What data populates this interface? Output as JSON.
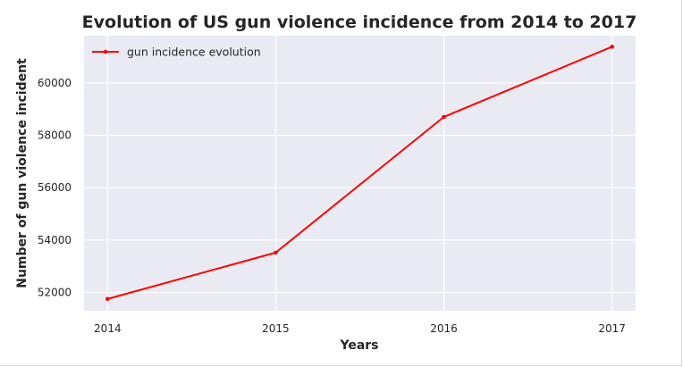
{
  "chart_data": {
    "type": "line",
    "title": "Evolution of US gun violence incidence from 2014 to 2017",
    "xlabel": "Years",
    "ylabel": "Number of gun violence incident",
    "x": [
      2014,
      2015,
      2016,
      2017
    ],
    "x_ticks": [
      "2014",
      "2015",
      "2016",
      "2017"
    ],
    "xlim": [
      2013.86,
      2017.14
    ],
    "ylim": [
      51300,
      61800
    ],
    "y_ticks": [
      52000,
      54000,
      56000,
      58000,
      60000
    ],
    "y_tick_labels": [
      "52000",
      "54000",
      "56000",
      "58000",
      "60000"
    ],
    "grid": true,
    "legend_position": "top-left",
    "series": [
      {
        "name": "gun incidence evolution",
        "color": "#ff0000",
        "values": [
          51750,
          53520,
          58700,
          61380
        ]
      }
    ],
    "colors": {
      "plot_background": "#eaeaf2",
      "grid": "#ffffff",
      "text": "#262626"
    }
  }
}
